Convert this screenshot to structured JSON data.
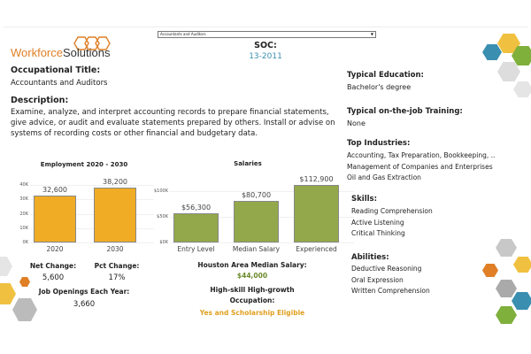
{
  "header": {
    "logo_text_a": "Workforce",
    "logo_text_b": "Solutions",
    "dropdown_value": "Accountants and Auditors",
    "soc_label": "SOC:",
    "soc_value": "13-2011"
  },
  "occupation": {
    "title_label": "Occupational Title:",
    "title_value": "Accountants and Auditors",
    "description_label": "Description:",
    "description_value": "Examine, analyze, and interpret accounting records to prepare financial statements, give advice, or audit and evaluate statements prepared by others. Install or advise on systems of recording costs or other financial and budgetary data."
  },
  "employment": {
    "net_change_label": "Net Change:",
    "net_change_value": "5,600",
    "pct_change_label": "Pct Change:",
    "pct_change_value": "17%",
    "job_openings_label": "Job Openings Each Year:",
    "job_openings_value": "3,660"
  },
  "salary_info": {
    "houston_label": "Houston Area Median Salary:",
    "houston_value": "$44,000",
    "hshg_label_1": "High-skill High-growth",
    "hshg_label_2": "Occupation:",
    "hshg_value": "Yes and Scholarship Eligible"
  },
  "right": {
    "education_label": "Typical Education:",
    "education_value": "Bachelor's degree",
    "training_label": "Typical on-the-job Training:",
    "training_value": "None",
    "industries_label": "Top Industries:",
    "industries": [
      "Accounting, Tax Preparation, Bookkeeping, ..",
      "Management of Companies and Enterprises",
      "Oil and Gas Extraction"
    ],
    "skills_label": "Skills:",
    "skills": [
      "Reading Comprehension",
      "Active Listening",
      "Critical Thinking"
    ],
    "abilities_label": "Abilities:",
    "abilities": [
      "Deductive Reasoning",
      "Oral Expression",
      "Written Comprehension"
    ]
  },
  "colors": {
    "orange": "#f0ac24",
    "green": "#93a84a",
    "teal": "#3a8fb0",
    "logo_orange": "#e07f26"
  },
  "chart_data": [
    {
      "type": "bar",
      "title": "Employment 2020 - 2030",
      "categories": [
        "2020",
        "2030"
      ],
      "values": [
        32600,
        38200
      ],
      "data_labels": [
        "32,600",
        "38,200"
      ],
      "yticks": [
        "0K",
        "10K",
        "20K",
        "30K",
        "40K"
      ],
      "ylim": [
        0,
        40000
      ],
      "color": "#f0ac24"
    },
    {
      "type": "bar",
      "title": "Salaries",
      "categories": [
        "Entry Level",
        "Median Salary",
        "Experienced"
      ],
      "values": [
        56300,
        80700,
        112900
      ],
      "data_labels": [
        "$56,300",
        "$80,700",
        "$112,900"
      ],
      "yticks": [
        "$0K",
        "$50K",
        "$100K"
      ],
      "ylim": [
        0,
        100000
      ],
      "color": "#93a84a"
    }
  ]
}
